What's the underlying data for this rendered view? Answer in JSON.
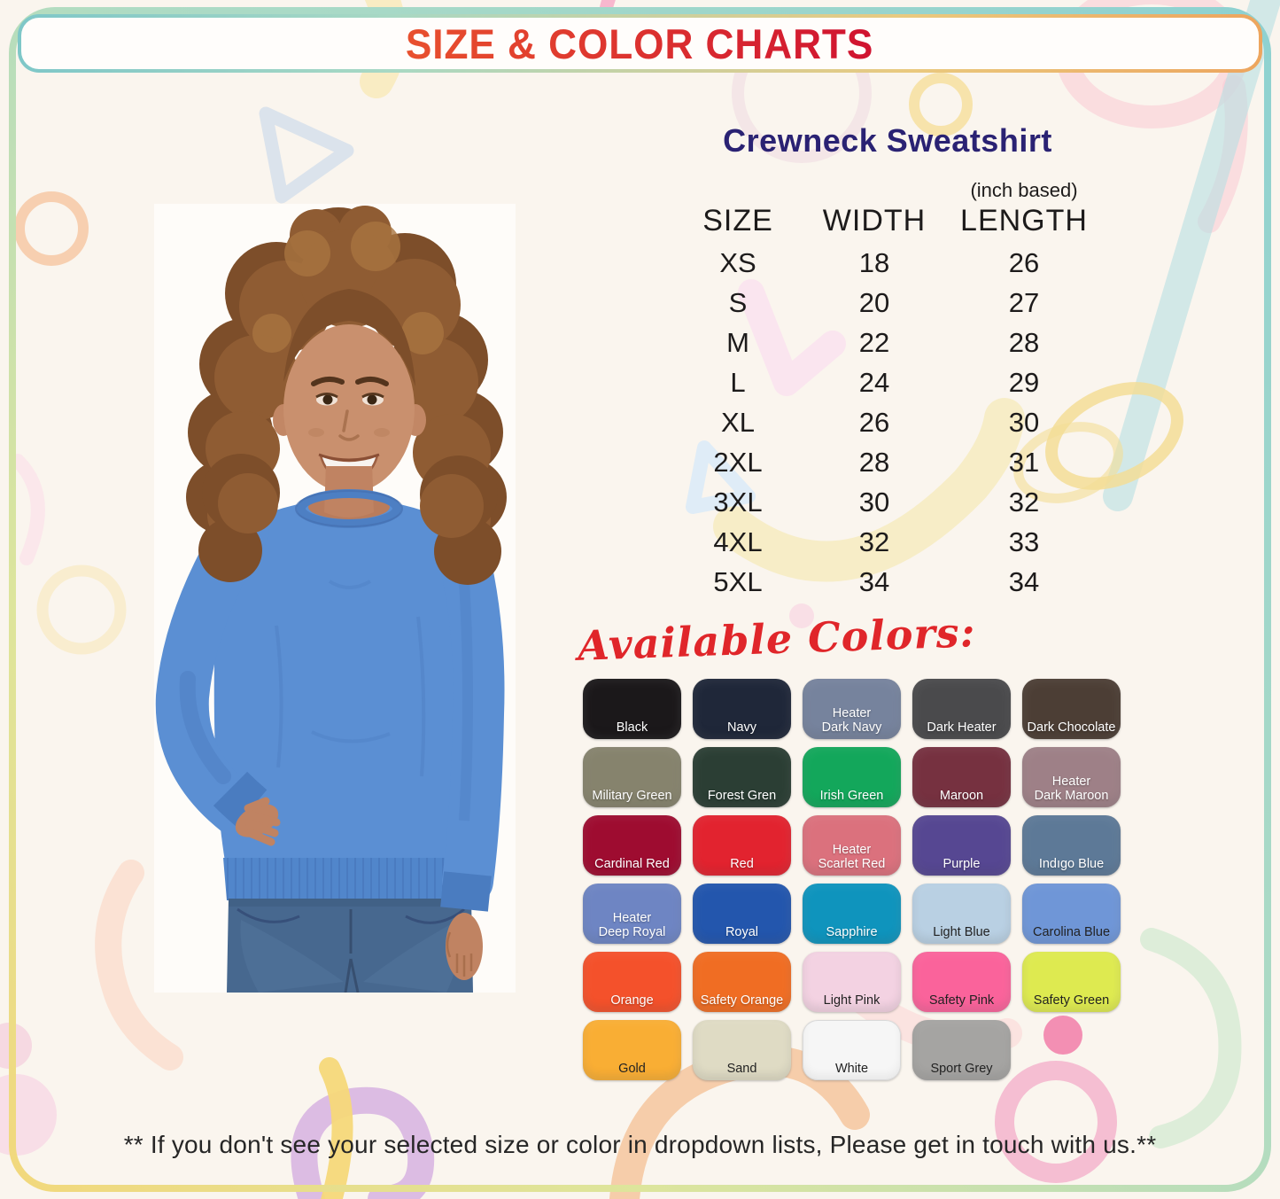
{
  "header": {
    "title": "SIZE & COLOR CHARTS"
  },
  "product": {
    "title": "Crewneck Sweatshirt"
  },
  "size_chart": {
    "unit_note": "(inch based)",
    "columns": [
      "SIZE",
      "WIDTH",
      "LENGTH"
    ],
    "rows": [
      {
        "size": "XS",
        "width": "18",
        "length": "26"
      },
      {
        "size": "S",
        "width": "20",
        "length": "27"
      },
      {
        "size": "M",
        "width": "22",
        "length": "28"
      },
      {
        "size": "L",
        "width": "24",
        "length": "29"
      },
      {
        "size": "XL",
        "width": "26",
        "length": "30"
      },
      {
        "size": "2XL",
        "width": "28",
        "length": "31"
      },
      {
        "size": "3XL",
        "width": "30",
        "length": "32"
      },
      {
        "size": "4XL",
        "width": "32",
        "length": "33"
      },
      {
        "size": "5XL",
        "width": "34",
        "length": "34"
      }
    ]
  },
  "colors": {
    "heading": "Available Colors:",
    "swatches": [
      {
        "name": "Black",
        "hex": "#1b181a",
        "text": "light"
      },
      {
        "name": "Navy",
        "hex": "#1f2739",
        "text": "light"
      },
      {
        "name": "Heater\nDark Navy",
        "hex": "#76839d",
        "text": "light"
      },
      {
        "name": "Dark  Heater",
        "hex": "#4a4a4c",
        "text": "light"
      },
      {
        "name": "Dark  Chocolate",
        "hex": "#4c3e35",
        "text": "light"
      },
      {
        "name": "Military Green",
        "hex": "#86836d",
        "text": "light"
      },
      {
        "name": "Forest Gren",
        "hex": "#2b3e34",
        "text": "light"
      },
      {
        "name": "Irish Green",
        "hex": "#13a75b",
        "text": "light"
      },
      {
        "name": "Maroon",
        "hex": "#763140",
        "text": "light"
      },
      {
        "name": "Heater\nDark Maroon",
        "hex": "#9e8087",
        "text": "light"
      },
      {
        "name": "Cardinal Red",
        "hex": "#9e0c30",
        "text": "light"
      },
      {
        "name": "Red",
        "hex": "#e2232f",
        "text": "light"
      },
      {
        "name": "Heater\nScarlet Red",
        "hex": "#db717d",
        "text": "light"
      },
      {
        "name": "Purple",
        "hex": "#564792",
        "text": "light"
      },
      {
        "name": "Indıgo Blue",
        "hex": "#5d7997",
        "text": "light"
      },
      {
        "name": "Heater\nDeep Royal",
        "hex": "#6e85c3",
        "text": "light"
      },
      {
        "name": "Royal",
        "hex": "#2356ad",
        "text": "light"
      },
      {
        "name": "Sapphire",
        "hex": "#0f94bd",
        "text": "light"
      },
      {
        "name": "Light Blue",
        "hex": "#b9d0e3",
        "text": "dark"
      },
      {
        "name": "Carolina Blue",
        "hex": "#6f96d7",
        "text": "dark"
      },
      {
        "name": "Orange",
        "hex": "#f4512b",
        "text": "light"
      },
      {
        "name": "Safety Orange",
        "hex": "#f06d23",
        "text": "light"
      },
      {
        "name": "Light Pink",
        "hex": "#f3d2e2",
        "text": "dark"
      },
      {
        "name": "Safety Pink",
        "hex": "#fa639b",
        "text": "dark"
      },
      {
        "name": "Safety Green",
        "hex": "#deea50",
        "text": "dark"
      },
      {
        "name": "Gold",
        "hex": "#f9ae34",
        "text": "dark"
      },
      {
        "name": "Sand",
        "hex": "#dfdbc4",
        "text": "dark"
      },
      {
        "name": "White",
        "hex": "#f6f6f6",
        "text": "dark"
      },
      {
        "name": "Sport Grey",
        "hex": "#a5a4a2",
        "text": "dark"
      }
    ]
  },
  "footer": {
    "note": "** If you don't see your selected size or color in dropdown lists, Please get in touch with us.**"
  },
  "model": {
    "description": "Model with curly hair wearing a Carolina Blue crewneck sweatshirt and jeans, hand on hip"
  },
  "palette": {
    "title_red": "#d32b2b",
    "heading_navy": "#2a2273",
    "script_red": "#e0262a",
    "frame_teal": "#8ed1d1",
    "frame_yellow": "#f2d87c",
    "background_cream": "#faf5ee"
  }
}
